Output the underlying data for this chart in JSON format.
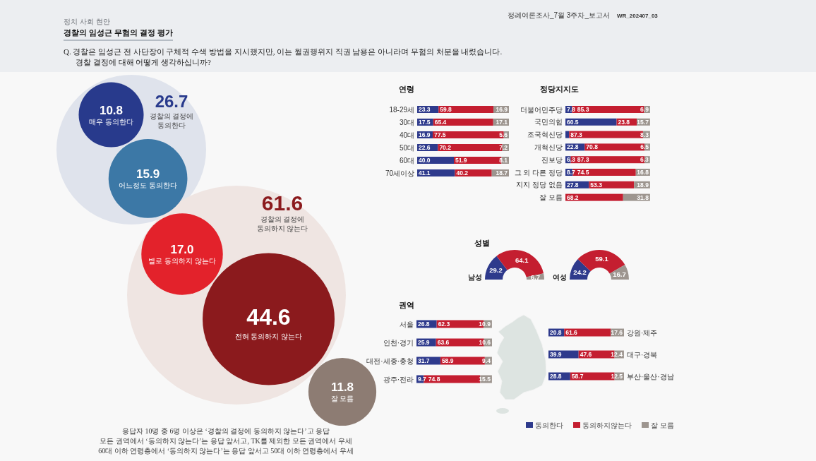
{
  "chart_data": [
    {
      "type": "other",
      "title": "경찰의 임성근 무혐의 결정 평가",
      "subtitle": "Q. 경찰은 임성근 전 사단장이 구체적 수색 방법을 지시했지만, 이는 월권행위지 직권 남용은 아니라며 무혐의 처분을 내렸습니다.\n경찰 결정에 대해 어떻게 생각하십니까?",
      "categories": [
        "매우 동의한다",
        "어느정도 동의한다",
        "경찰의 결정에 동의한다",
        "별로 동의하지 않는다",
        "전혀 동의하지 않는다",
        "경찰의 결정에 동의하지 않는다",
        "잘 모름"
      ],
      "values": [
        10.8,
        15.9,
        26.7,
        17.0,
        44.6,
        61.6,
        11.8
      ],
      "value_labels": [
        "10.8",
        "15.9",
        "26.7",
        "17.0",
        "44.6",
        "61.6",
        "11.8"
      ],
      "colors": [
        "#283a8c",
        "#3c78a6",
        "#dfe3ec",
        "#e3222b",
        "#8b1a1d",
        "#efe5e2",
        "#8d7c73"
      ],
      "annotations": [
        "정치 사회 현안",
        "정례여론조사_7월 3주차_보고서",
        "WR_202407_03",
        "응답자 10명 중 6명 이상은 ‘경찰의 결정에 동의하지 않는다’고 응답",
        "모든 권역에서 ‘동의하지 않는다’는 응답 앞서고, TK를 제외한 모든 권역에서 우세",
        "60대 이하 연령층에서 ‘동의하지 않는다’는 응답 앞서고 50대 이하 연령층에서 우세"
      ]
    },
    {
      "type": "bar",
      "orientation": "horizontal",
      "stacked": true,
      "title": "연령",
      "tick_labels": "y",
      "categories": [
        "18-29세",
        "30대",
        "40대",
        "50대",
        "60대",
        "70세이상"
      ],
      "series": [
        {
          "color": "#2e3a8c",
          "values": [
            23.3,
            17.5,
            16.9,
            22.6,
            40.0,
            41.1
          ],
          "value_labels": [
            "23.3",
            "17.5",
            "16.9",
            "22.6",
            "40.0",
            "41.1"
          ]
        },
        {
          "color": "#c41e30",
          "values": [
            59.8,
            65.4,
            77.5,
            70.2,
            51.9,
            40.2
          ],
          "value_labels": [
            "59.8",
            "65.4",
            "77.5",
            "70.2",
            "51.9",
            "40.2"
          ]
        },
        {
          "color": "#9d958f",
          "values": [
            16.9,
            17.1,
            5.6,
            7.2,
            8.1,
            18.7
          ],
          "value_labels": [
            "16.9",
            "17.1",
            "5.6",
            "7.2",
            "8.1",
            "18.7"
          ]
        }
      ]
    },
    {
      "type": "bar",
      "orientation": "horizontal",
      "stacked": true,
      "title": "정당지지도",
      "tick_labels": "y",
      "categories": [
        "더불어민주당",
        "국민의힘",
        "조국혁신당",
        "개혁신당",
        "진보당",
        "그 외 다른 정당",
        "지지 정당 없음",
        "잘 모름"
      ],
      "series": [
        {
          "color": "#2e3a8c",
          "values": [
            7.8,
            60.5,
            4.4,
            22.8,
            6.3,
            8.7,
            27.8,
            null
          ],
          "value_labels": [
            "7.8",
            "60.5",
            null,
            "22.8",
            "6.3",
            "8.7",
            "27.8",
            null
          ]
        },
        {
          "color": "#c41e30",
          "values": [
            85.3,
            23.8,
            87.3,
            70.8,
            87.3,
            74.5,
            53.3,
            68.2
          ],
          "value_labels": [
            "85.3",
            "23.8",
            "87.3",
            "70.8",
            "87.3",
            "74.5",
            "53.3",
            "68.2"
          ]
        },
        {
          "color": "#9d958f",
          "values": [
            6.9,
            15.7,
            8.3,
            6.5,
            6.3,
            16.8,
            18.9,
            31.8
          ],
          "value_labels": [
            "6.9",
            "15.7",
            "8.3",
            "6.5",
            "6.3",
            "16.8",
            "18.9",
            "31.8"
          ]
        }
      ]
    },
    {
      "type": "donut",
      "title": "남성",
      "annotations": [
        "성별"
      ],
      "categories": [
        null,
        null,
        null
      ],
      "values": [
        29.2,
        64.1,
        6.7
      ],
      "colors": [
        "#2e3a8c",
        "#c41e30",
        "#9d958f"
      ],
      "data_labels": true
    },
    {
      "type": "donut",
      "title": "여성",
      "categories": [
        null,
        null,
        null
      ],
      "values": [
        24.2,
        59.1,
        16.7
      ],
      "colors": [
        "#2e3a8c",
        "#c41e30",
        "#9d958f"
      ],
      "data_labels": true
    },
    {
      "type": "bar",
      "orientation": "horizontal",
      "stacked": true,
      "title": "권역",
      "tick_labels": "y",
      "categories": [
        "서울",
        "인천·경기",
        "대전·세종·충청",
        "광주·전라"
      ],
      "series": [
        {
          "color": "#2e3a8c",
          "values": [
            26.8,
            25.9,
            31.7,
            9.7
          ],
          "value_labels": [
            "26.8",
            "25.9",
            "31.7",
            "9.7"
          ]
        },
        {
          "color": "#c41e30",
          "values": [
            62.3,
            63.6,
            58.9,
            74.8
          ],
          "value_labels": [
            "62.3",
            "63.6",
            "58.9",
            "74.8"
          ]
        },
        {
          "color": "#9d958f",
          "values": [
            10.9,
            10.6,
            9.4,
            15.5
          ],
          "value_labels": [
            "10.9",
            "10.6",
            "9.4",
            "15.5"
          ]
        }
      ]
    },
    {
      "type": "bar",
      "orientation": "horizontal",
      "stacked": true,
      "tick_labels": "y",
      "legend": "bottom",
      "categories": [
        "강원·제주",
        "대구·경북",
        "부산·울산·경남"
      ],
      "series": [
        {
          "name": "동의한다",
          "color": "#2e3a8c",
          "values": [
            20.8,
            39.9,
            28.8
          ],
          "value_labels": [
            "20.8",
            "39.9",
            "28.8"
          ]
        },
        {
          "name": "동의하지않는다",
          "color": "#c41e30",
          "values": [
            61.6,
            47.6,
            58.7
          ],
          "value_labels": [
            "61.6",
            "47.6",
            "58.7"
          ]
        },
        {
          "name": "잘 모름",
          "color": "#9d958f",
          "values": [
            17.6,
            12.4,
            12.5
          ],
          "value_labels": [
            "17.6",
            "12.4",
            "12.5"
          ]
        }
      ]
    }
  ]
}
